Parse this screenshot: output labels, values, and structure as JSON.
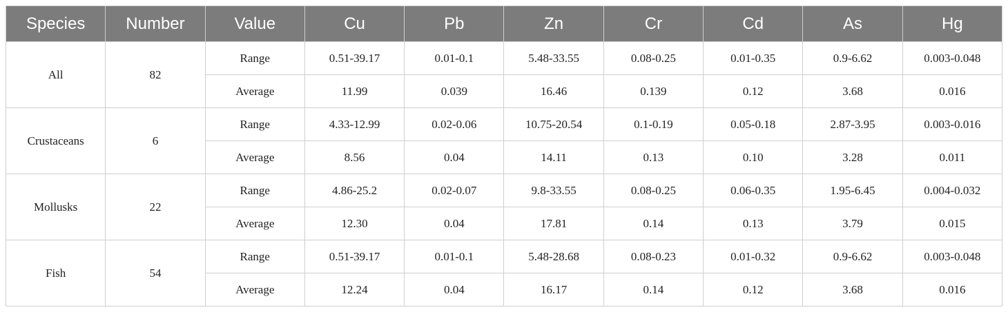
{
  "table": {
    "header": [
      "Species",
      "Number",
      "Value",
      "Cu",
      "Pb",
      "Zn",
      "Cr",
      "Cd",
      "As",
      "Hg"
    ],
    "groups": [
      {
        "species": "All",
        "number": "82",
        "rows": [
          {
            "label": "Range",
            "values": [
              "0.51-39.17",
              "0.01-0.1",
              "5.48-33.55",
              "0.08-0.25",
              "0.01-0.35",
              "0.9-6.62",
              "0.003-0.048"
            ]
          },
          {
            "label": "Average",
            "values": [
              "11.99",
              "0.039",
              "16.46",
              "0.139",
              "0.12",
              "3.68",
              "0.016"
            ]
          }
        ]
      },
      {
        "species": "Crustaceans",
        "number": "6",
        "rows": [
          {
            "label": "Range",
            "values": [
              "4.33-12.99",
              "0.02-0.06",
              "10.75-20.54",
              "0.1-0.19",
              "0.05-0.18",
              "2.87-3.95",
              "0.003-0.016"
            ]
          },
          {
            "label": "Average",
            "values": [
              "8.56",
              "0.04",
              "14.11",
              "0.13",
              "0.10",
              "3.28",
              "0.011"
            ]
          }
        ]
      },
      {
        "species": "Mollusks",
        "number": "22",
        "rows": [
          {
            "label": "Range",
            "values": [
              "4.86-25.2",
              "0.02-0.07",
              "9.8-33.55",
              "0.08-0.25",
              "0.06-0.35",
              "1.95-6.45",
              "0.004-0.032"
            ]
          },
          {
            "label": "Average",
            "values": [
              "12.30",
              "0.04",
              "17.81",
              "0.14",
              "0.13",
              "3.79",
              "0.015"
            ]
          }
        ]
      },
      {
        "species": "Fish",
        "number": "54",
        "rows": [
          {
            "label": "Range",
            "values": [
              "0.51-39.17",
              "0.01-0.1",
              "5.48-28.68",
              "0.08-0.23",
              "0.01-0.32",
              "0.9-6.62",
              "0.003-0.048"
            ]
          },
          {
            "label": "Average",
            "values": [
              "12.24",
              "0.04",
              "16.17",
              "0.14",
              "0.12",
              "3.68",
              "0.016"
            ]
          }
        ]
      }
    ]
  }
}
